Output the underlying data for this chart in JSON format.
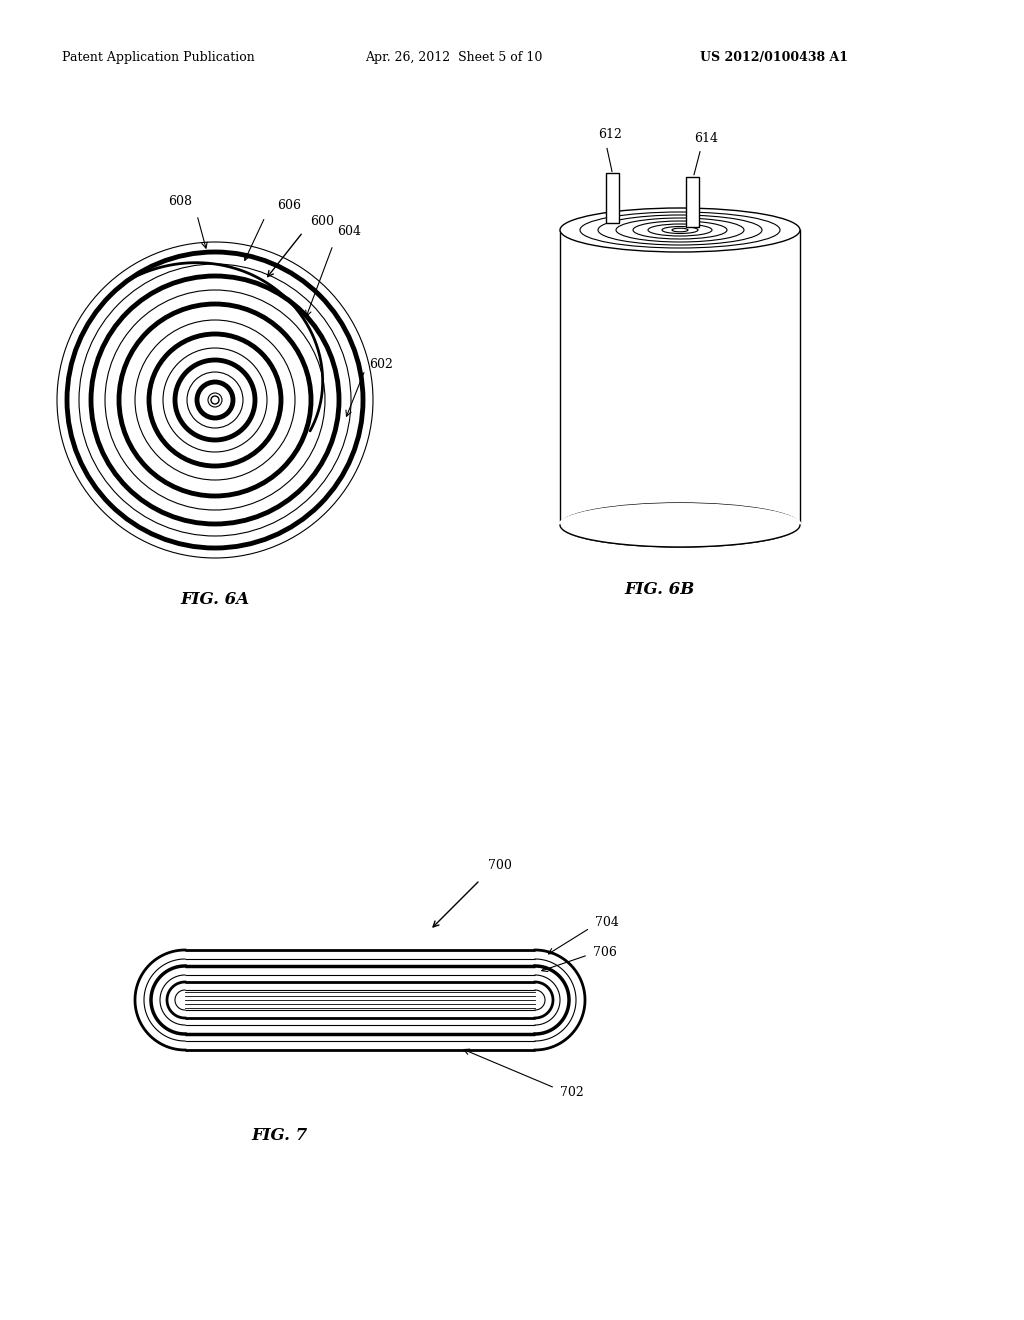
{
  "bg_color": "#ffffff",
  "line_color": "#000000",
  "header_left": "Patent Application Publication",
  "header_mid": "Apr. 26, 2012  Sheet 5 of 10",
  "header_right": "US 2012/0100438 A1",
  "fig6a_label": "FIG. 6A",
  "fig6b_label": "FIG. 6B",
  "fig7_label": "FIG. 7",
  "label_600": "600",
  "label_602": "602",
  "label_604": "604",
  "label_606": "606",
  "label_608": "608",
  "label_612": "612",
  "label_614": "614",
  "label_700": "700",
  "label_702": "702",
  "label_704": "704",
  "label_706": "706",
  "font_size_header": 9,
  "font_size_label": 9,
  "font_size_fig": 12
}
